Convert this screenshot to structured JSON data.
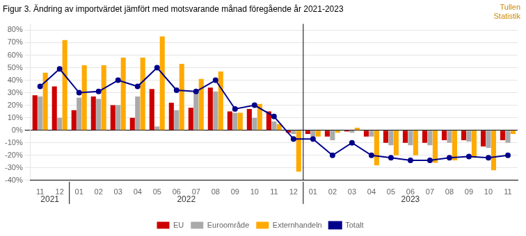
{
  "chart_data": {
    "type": "bar",
    "title": "Figur 3. Ändring av importvärdet jämfört med motsvarande månad föregående år 2021-2023",
    "watermark": "Tullen\nStatistik",
    "categories": [
      "11",
      "12",
      "01",
      "02",
      "03",
      "04",
      "05",
      "06",
      "07",
      "08",
      "09",
      "10",
      "11",
      "12",
      "01",
      "02",
      "03",
      "04",
      "05",
      "06",
      "07",
      "08",
      "09",
      "10",
      "11"
    ],
    "category_groups": [
      "2021",
      "2021",
      "2022",
      "2022",
      "2022",
      "2022",
      "2022",
      "2022",
      "2022",
      "2022",
      "2022",
      "2022",
      "2022",
      "2022",
      "2023",
      "2023",
      "2023",
      "2023",
      "2023",
      "2023",
      "2023",
      "2023",
      "2023",
      "2023",
      "2023"
    ],
    "divider_before": "2023",
    "series": [
      {
        "name": "EU",
        "color": "#cc0000",
        "values": [
          28,
          35,
          16,
          27,
          20,
          10,
          33,
          22,
          18,
          34,
          15,
          17,
          15,
          -2,
          -3,
          -5,
          -1,
          -5,
          -10,
          -10,
          -10,
          -8,
          -8,
          -13,
          -8
        ]
      },
      {
        "name": "Euroområde",
        "color": "#aaaaaa",
        "values": [
          27,
          10,
          26,
          25,
          20,
          27,
          3,
          16,
          31,
          31,
          14,
          10,
          7,
          -3,
          -5,
          -8,
          -2,
          -5,
          -12,
          -12,
          -12,
          -10,
          -9,
          -14,
          -10
        ]
      },
      {
        "name": "Externhandeln",
        "color": "#ffaa00",
        "values": [
          46,
          72,
          52,
          52,
          58,
          58,
          75,
          53,
          41,
          47,
          14,
          21,
          5,
          -33,
          -5,
          -2,
          2,
          -28,
          -20,
          -20,
          -26,
          -24,
          -22,
          -32,
          -3
        ]
      },
      {
        "name": "Totalt",
        "type": "line",
        "color": "#00008b",
        "marker": "circle",
        "values": [
          35,
          49,
          30,
          31,
          40,
          35,
          50,
          32,
          31,
          40,
          17,
          20,
          11,
          -7,
          -7,
          -20,
          -10,
          -20,
          -22,
          -24,
          -24,
          -22,
          -21,
          -22,
          -20
        ]
      }
    ],
    "ylim": [
      -40,
      85
    ],
    "yticks": [
      {
        "value": -40,
        "label": "-40%"
      },
      {
        "value": -30,
        "label": "-30%"
      },
      {
        "value": -20,
        "label": "-20%"
      },
      {
        "value": -10,
        "label": "-10%"
      },
      {
        "value": 0,
        "label": "0%"
      },
      {
        "value": 10,
        "label": "10%"
      },
      {
        "value": 20,
        "label": "20%"
      },
      {
        "value": 30,
        "label": "30%"
      },
      {
        "value": 40,
        "label": "40%"
      },
      {
        "value": 50,
        "label": "50%"
      },
      {
        "value": 60,
        "label": "60%"
      },
      {
        "value": 70,
        "label": "70%"
      },
      {
        "value": 80,
        "label": "80%"
      }
    ],
    "grid": true,
    "legend": "bottom"
  }
}
